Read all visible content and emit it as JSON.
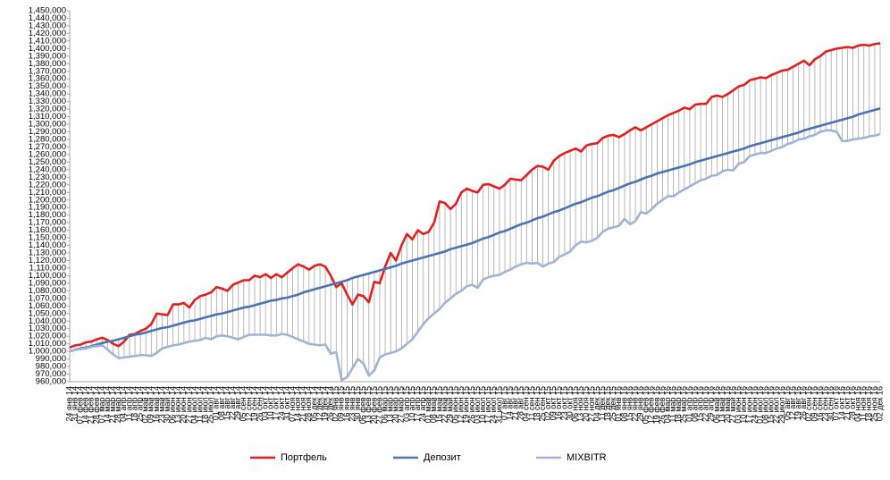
{
  "chart_data": {
    "type": "line",
    "legend": "bottom",
    "grid": false,
    "high_low_lines": true,
    "high_low_color": "#a6a6a6",
    "axis_color": "#a6a6a6",
    "categories": [
      "24 янв 14",
      "31 янв 14",
      "07 фев 14",
      "14 фев 14",
      "21 фев 14",
      "28 фев 14",
      "07 мар 14",
      "14 мар 14",
      "21 мар 14",
      "28 мар 14",
      "04 апр 14",
      "11 апр 14",
      "18 апр 14",
      "25 апр 14",
      "02 май 14",
      "09 май 14",
      "16 май 14",
      "23 май 14",
      "30 май 14",
      "06 июн 14",
      "13 июн 14",
      "20 июн 14",
      "27 июн 14",
      "04 июл 14",
      "11 июл 14",
      "18 июл 14",
      "25 июл 14",
      "01 авг 14",
      "08 авг 14",
      "15 авг 14",
      "22 авг 14",
      "29 авг 14",
      "05 сен 14",
      "12 сен 14",
      "19 сен 14",
      "26 сен 14",
      "03 окт 14",
      "10 окт 14",
      "17 окт 14",
      "24 окт 14",
      "31 окт 14",
      "07 ноя 14",
      "14 ноя 14",
      "21 ноя 14",
      "28 ноя 14",
      "05 дек 14",
      "12 дек 14",
      "19 дек 14",
      "26 дек 14",
      "02 янв 15",
      "09 янв 15",
      "16 янв 15",
      "23 янв 15",
      "30 янв 15",
      "06 фев 15",
      "13 фев 15",
      "20 фев 15",
      "27 фев 15",
      "06 мар 15",
      "13 мар 15",
      "20 мар 15",
      "27 мар 15",
      "03 апр 15",
      "10 апр 15",
      "17 апр 15",
      "24 апр 15",
      "01 май 15",
      "08 май 15",
      "15 май 15",
      "22 май 15",
      "29 май 15",
      "05 июн 15",
      "12 июн 15",
      "19 июн 15",
      "26 июн 15",
      "03 июл 15",
      "10 июл 15",
      "17 июл 15",
      "24 июл 15",
      "31 июл 15",
      "07 авг 15",
      "14 авг 15",
      "21 авг 15",
      "28 авг 15",
      "04 сен 15",
      "11 сен 15",
      "18 сен 15",
      "25 сен 15",
      "02 окт 15",
      "09 окт 15",
      "16 окт 15",
      "23 окт 15",
      "30 окт 15",
      "06 ноя 15",
      "13 ноя 15",
      "20 ноя 15",
      "27 ноя 15",
      "04 дек 15",
      "11 дек 15",
      "18 дек 15",
      "25 дек 15",
      "01 янв 16",
      "08 янв 16",
      "15 янв 16",
      "22 янв 16",
      "29 янв 16",
      "05 фев 16",
      "12 фев 16",
      "19 фев 16",
      "26 фев 16",
      "04 мар 16",
      "11 мар 16",
      "18 мар 16",
      "25 мар 16",
      "01 апр 16",
      "08 апр 16",
      "15 апр 16",
      "22 апр 16",
      "29 апр 16",
      "06 май 16",
      "13 май 16",
      "20 май 16",
      "27 май 16",
      "03 июн 16",
      "10 июн 16",
      "17 июн 16",
      "24 июн 16",
      "01 июл 16",
      "08 июл 16",
      "15 июл 16",
      "22 июл 16",
      "29 июл 16",
      "05 авг 16",
      "12 авг 16",
      "19 авг 16",
      "26 авг 16",
      "02 сен 16",
      "09 сен 16",
      "16 сен 16",
      "23 сен 16",
      "30 сен 16",
      "07 окт 16",
      "14 окт 16",
      "21 окт 16",
      "28 окт 16",
      "04 ноя 16",
      "11 ноя 16",
      "18 ноя 16",
      "25 ноя 16",
      "02 дек 16"
    ],
    "series": [
      {
        "name": "Портфель",
        "color": "#e3201e",
        "values": [
          1005000,
          1008000,
          1009000,
          1012000,
          1013000,
          1016000,
          1018000,
          1015000,
          1010000,
          1007000,
          1013000,
          1022000,
          1023000,
          1027000,
          1030000,
          1036000,
          1050000,
          1049000,
          1048000,
          1062000,
          1062000,
          1064000,
          1058000,
          1068000,
          1073000,
          1075000,
          1078000,
          1085000,
          1083000,
          1080000,
          1088000,
          1091000,
          1094000,
          1094000,
          1100000,
          1098000,
          1102000,
          1097000,
          1102000,
          1098000,
          1104000,
          1110000,
          1115000,
          1112000,
          1108000,
          1113000,
          1115000,
          1112000,
          1100000,
          1085000,
          1090000,
          1075000,
          1062000,
          1075000,
          1073000,
          1065000,
          1092000,
          1090000,
          1112000,
          1130000,
          1120000,
          1140000,
          1155000,
          1148000,
          1160000,
          1155000,
          1158000,
          1170000,
          1198000,
          1196000,
          1188000,
          1195000,
          1210000,
          1215000,
          1212000,
          1210000,
          1220000,
          1221000,
          1218000,
          1215000,
          1220000,
          1228000,
          1227000,
          1226000,
          1233000,
          1240000,
          1245000,
          1244000,
          1240000,
          1252000,
          1258000,
          1262000,
          1265000,
          1268000,
          1264000,
          1272000,
          1274000,
          1275000,
          1282000,
          1285000,
          1286000,
          1283000,
          1287000,
          1292000,
          1296000,
          1292000,
          1296000,
          1300000,
          1304000,
          1308000,
          1312000,
          1315000,
          1318000,
          1322000,
          1320000,
          1326000,
          1327000,
          1327000,
          1336000,
          1338000,
          1336000,
          1340000,
          1345000,
          1350000,
          1352000,
          1358000,
          1360000,
          1362000,
          1361000,
          1365000,
          1368000,
          1371000,
          1372000,
          1376000,
          1380000,
          1384000,
          1378000,
          1386000,
          1390000,
          1396000,
          1398000,
          1400000,
          1401000,
          1402000,
          1401000,
          1404000,
          1405000,
          1404000,
          1406000,
          1407000
        ]
      },
      {
        "name": "Депозит",
        "color": "#4a74b4",
        "values": [
          1000000,
          1002000,
          1004000,
          1005000,
          1007000,
          1009000,
          1011000,
          1013000,
          1014000,
          1016000,
          1018000,
          1020000,
          1022000,
          1023000,
          1025000,
          1027000,
          1029000,
          1031000,
          1032000,
          1034000,
          1036000,
          1038000,
          1040000,
          1041000,
          1043000,
          1045000,
          1047000,
          1049000,
          1050000,
          1052000,
          1054000,
          1056000,
          1058000,
          1059000,
          1061000,
          1063000,
          1065000,
          1067000,
          1068000,
          1070000,
          1071000,
          1073000,
          1075000,
          1078000,
          1080000,
          1082000,
          1084000,
          1086000,
          1088000,
          1090000,
          1092000,
          1094000,
          1097000,
          1099000,
          1101000,
          1103000,
          1105000,
          1107000,
          1109000,
          1111000,
          1113000,
          1116000,
          1118000,
          1120000,
          1122000,
          1124000,
          1126000,
          1128000,
          1130000,
          1132000,
          1135000,
          1137000,
          1139000,
          1141000,
          1143000,
          1146000,
          1149000,
          1151000,
          1154000,
          1157000,
          1159000,
          1162000,
          1165000,
          1168000,
          1170000,
          1173000,
          1176000,
          1178000,
          1181000,
          1184000,
          1186000,
          1189000,
          1192000,
          1195000,
          1197000,
          1200000,
          1203000,
          1205000,
          1208000,
          1211000,
          1213000,
          1216000,
          1219000,
          1222000,
          1224000,
          1227000,
          1230000,
          1232000,
          1235000,
          1237000,
          1239000,
          1241000,
          1243000,
          1245000,
          1247000,
          1250000,
          1252000,
          1254000,
          1256000,
          1258000,
          1260000,
          1262000,
          1264000,
          1266000,
          1268000,
          1271000,
          1273000,
          1275000,
          1277000,
          1279000,
          1281000,
          1283000,
          1285000,
          1287000,
          1289000,
          1292000,
          1294000,
          1296000,
          1298000,
          1300000,
          1302000,
          1304000,
          1306000,
          1308000,
          1310000,
          1313000,
          1315000,
          1317000,
          1319000,
          1321000
        ]
      },
      {
        "name": "MIXBITR",
        "color": "#a0b4d8",
        "values": [
          1000000,
          1002000,
          1003000,
          1004000,
          1006000,
          1007000,
          1008000,
          1002000,
          996000,
          991000,
          992000,
          993000,
          994000,
          995000,
          995000,
          994000,
          998000,
          1004000,
          1006000,
          1008000,
          1009000,
          1011000,
          1013000,
          1014000,
          1015000,
          1018000,
          1016000,
          1020000,
          1021000,
          1020000,
          1018000,
          1016000,
          1019000,
          1022000,
          1022000,
          1022000,
          1022000,
          1021000,
          1021000,
          1023000,
          1022000,
          1019000,
          1016000,
          1013000,
          1010000,
          1009000,
          1008000,
          1009000,
          997000,
          999000,
          962000,
          966000,
          978000,
          990000,
          984000,
          968000,
          975000,
          992000,
          996000,
          998000,
          1000000,
          1004000,
          1010000,
          1016000,
          1026000,
          1036000,
          1044000,
          1050000,
          1056000,
          1064000,
          1070000,
          1076000,
          1080000,
          1086000,
          1088000,
          1084000,
          1095000,
          1098000,
          1100000,
          1101000,
          1105000,
          1108000,
          1112000,
          1115000,
          1117000,
          1116000,
          1117000,
          1112000,
          1116000,
          1118000,
          1125000,
          1128000,
          1132000,
          1140000,
          1145000,
          1144000,
          1146000,
          1150000,
          1158000,
          1162000,
          1164000,
          1166000,
          1175000,
          1168000,
          1172000,
          1184000,
          1182000,
          1188000,
          1195000,
          1200000,
          1205000,
          1205000,
          1210000,
          1214000,
          1218000,
          1222000,
          1226000,
          1228000,
          1232000,
          1233000,
          1238000,
          1240000,
          1239000,
          1248000,
          1250000,
          1258000,
          1260000,
          1262000,
          1262000,
          1265000,
          1268000,
          1270000,
          1274000,
          1276000,
          1280000,
          1281000,
          1284000,
          1286000,
          1290000,
          1292000,
          1292000,
          1290000,
          1278000,
          1278000,
          1280000,
          1281000,
          1282000,
          1284000,
          1285000,
          1287000
        ]
      }
    ],
    "ylim": [
      960000,
      1450000
    ],
    "yticks": [
      {
        "value": 960000,
        "label": "960,000"
      },
      {
        "value": 970000,
        "label": "970,000"
      },
      {
        "value": 980000,
        "label": "980,000"
      },
      {
        "value": 990000,
        "label": "990,000"
      },
      {
        "value": 1000000,
        "label": "1,000,000"
      },
      {
        "value": 1010000,
        "label": "1,010,000"
      },
      {
        "value": 1020000,
        "label": "1,020,000"
      },
      {
        "value": 1030000,
        "label": "1,030,000"
      },
      {
        "value": 1040000,
        "label": "1,040,000"
      },
      {
        "value": 1050000,
        "label": "1,050,000"
      },
      {
        "value": 1060000,
        "label": "1,060,000"
      },
      {
        "value": 1070000,
        "label": "1,070,000"
      },
      {
        "value": 1080000,
        "label": "1,080,000"
      },
      {
        "value": 1090000,
        "label": "1,090,000"
      },
      {
        "value": 1100000,
        "label": "1,100,000"
      },
      {
        "value": 1110000,
        "label": "1,110,000"
      },
      {
        "value": 1120000,
        "label": "1,120,000"
      },
      {
        "value": 1130000,
        "label": "1,130,000"
      },
      {
        "value": 1140000,
        "label": "1,140,000"
      },
      {
        "value": 1150000,
        "label": "1,150,000"
      },
      {
        "value": 1160000,
        "label": "1,160,000"
      },
      {
        "value": 1170000,
        "label": "1,170,000"
      },
      {
        "value": 1180000,
        "label": "1,180,000"
      },
      {
        "value": 1190000,
        "label": "1,190,000"
      },
      {
        "value": 1200000,
        "label": "1,200,000"
      },
      {
        "value": 1210000,
        "label": "1,210,000"
      },
      {
        "value": 1220000,
        "label": "1,220,000"
      },
      {
        "value": 1230000,
        "label": "1,230,000"
      },
      {
        "value": 1240000,
        "label": "1,240,000"
      },
      {
        "value": 1250000,
        "label": "1,250,000"
      },
      {
        "value": 1260000,
        "label": "1,260,000"
      },
      {
        "value": 1270000,
        "label": "1,270,000"
      },
      {
        "value": 1280000,
        "label": "1,280,000"
      },
      {
        "value": 1290000,
        "label": "1,290,000"
      },
      {
        "value": 1300000,
        "label": "1,300,000"
      },
      {
        "value": 1310000,
        "label": "1,310,000"
      },
      {
        "value": 1320000,
        "label": "1,320,000"
      },
      {
        "value": 1330000,
        "label": "1,330,000"
      },
      {
        "value": 1340000,
        "label": "1,340,000"
      },
      {
        "value": 1350000,
        "label": "1,350,000"
      },
      {
        "value": 1360000,
        "label": "1,360,000"
      },
      {
        "value": 1370000,
        "label": "1,370,000"
      },
      {
        "value": 1380000,
        "label": "1,380,000"
      },
      {
        "value": 1390000,
        "label": "1,390,000"
      },
      {
        "value": 1400000,
        "label": "1,400,000"
      },
      {
        "value": 1410000,
        "label": "1,410,000"
      },
      {
        "value": 1420000,
        "label": "1,420,000"
      },
      {
        "value": 1430000,
        "label": "1,430,000"
      },
      {
        "value": 1440000,
        "label": "1,440,000"
      },
      {
        "value": 1450000,
        "label": "1,450,000"
      }
    ]
  }
}
